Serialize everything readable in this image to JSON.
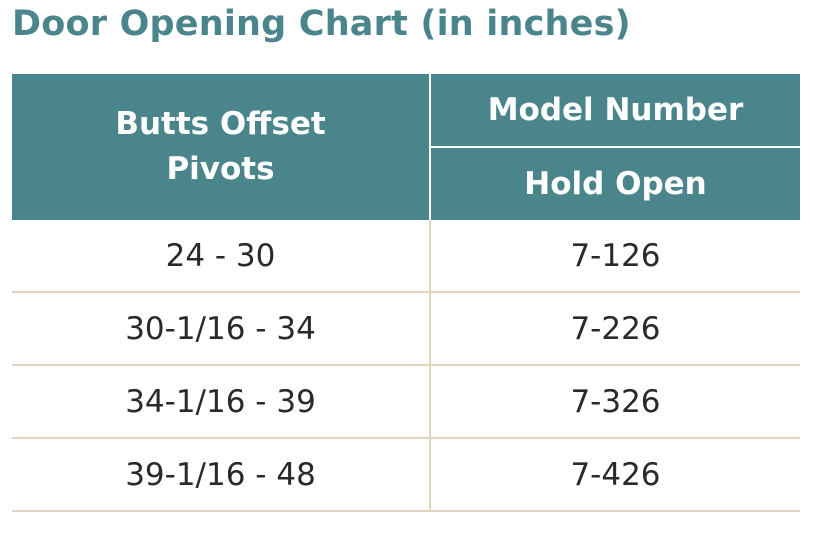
{
  "title": "Door Opening Chart (in inches)",
  "table": {
    "header": {
      "col1_line1": "Butts Offset",
      "col1_line2": "Pivots",
      "col2_group": "Model Number",
      "col2_sub": "Hold Open"
    },
    "rows": [
      {
        "range": "24 - 30",
        "model": "7-126"
      },
      {
        "range": "30-1/16 - 34",
        "model": "7-226"
      },
      {
        "range": "34-1/16 - 39",
        "model": "7-326"
      },
      {
        "range": "39-1/16 - 48",
        "model": "7-426"
      }
    ]
  },
  "colors": {
    "title": "#4b858c",
    "header_background": "#4b858c",
    "header_text": "#ffffff",
    "row_divider": "#e2d5bd",
    "body_text": "#2a2a2a"
  }
}
